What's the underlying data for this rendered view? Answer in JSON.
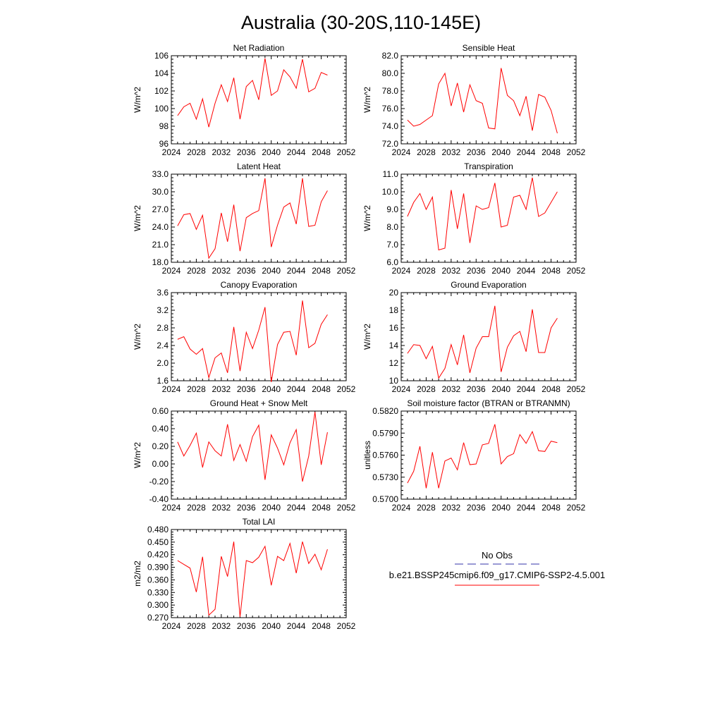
{
  "figure": {
    "title": "Australia (30-20S,110-145E)"
  },
  "legend": {
    "obs_label": "No Obs",
    "obs_color": "#3333aa",
    "model_label": "b.e21.BSSP245cmip6.f09_g17.CMIP6-SSP2-4.5.001",
    "model_color": "#ff0000"
  },
  "chart_data": [
    {
      "type": "line",
      "title": "Net Radiation",
      "ylabel": "W/m^2",
      "xlim": [
        2024,
        2052
      ],
      "xticks": [
        "2024",
        "2028",
        "2032",
        "2036",
        "2040",
        "2044",
        "2048",
        "2052"
      ],
      "ylim": [
        96,
        106
      ],
      "yticks": [
        "96",
        "98",
        "100",
        "102",
        "104",
        "106"
      ],
      "x": [
        2025,
        2026,
        2027,
        2028,
        2029,
        2030,
        2031,
        2032,
        2033,
        2034,
        2035,
        2036,
        2037,
        2038,
        2039,
        2040,
        2041,
        2042,
        2043,
        2044,
        2045,
        2046,
        2047,
        2048,
        2049
      ],
      "series": [
        {
          "values": [
            99.2,
            100.2,
            100.6,
            98.8,
            101.1,
            97.9,
            100.6,
            102.7,
            100.8,
            103.5,
            98.8,
            102.5,
            103.2,
            101.0,
            105.7,
            101.5,
            102.0,
            104.4,
            103.6,
            102.3,
            105.6,
            101.9,
            102.3,
            104.1,
            103.8
          ]
        }
      ]
    },
    {
      "type": "line",
      "title": "Sensible Heat",
      "ylabel": "W/m^2",
      "xlim": [
        2024,
        2052
      ],
      "xticks": [
        "2024",
        "2028",
        "2032",
        "2036",
        "2040",
        "2044",
        "2048",
        "2052"
      ],
      "ylim": [
        72.0,
        82.0
      ],
      "yticks": [
        "72.0",
        "74.0",
        "76.0",
        "78.0",
        "80.0",
        "82.0"
      ],
      "x": [
        2025,
        2026,
        2027,
        2028,
        2029,
        2030,
        2031,
        2032,
        2033,
        2034,
        2035,
        2036,
        2037,
        2038,
        2039,
        2040,
        2041,
        2042,
        2043,
        2044,
        2045,
        2046,
        2047,
        2048,
        2049
      ],
      "series": [
        {
          "values": [
            74.7,
            74.0,
            74.2,
            74.7,
            75.2,
            78.8,
            80.0,
            76.3,
            78.9,
            75.6,
            78.7,
            76.9,
            76.6,
            73.8,
            73.7,
            80.6,
            77.5,
            76.9,
            75.2,
            77.4,
            73.5,
            77.6,
            77.3,
            75.8,
            73.2
          ]
        }
      ]
    },
    {
      "type": "line",
      "title": "Latent Heat",
      "ylabel": "W/m^2",
      "xlim": [
        2024,
        2052
      ],
      "xticks": [
        "2024",
        "2028",
        "2032",
        "2036",
        "2040",
        "2044",
        "2048",
        "2052"
      ],
      "ylim": [
        18.0,
        33.0
      ],
      "yticks": [
        "18.0",
        "21.0",
        "24.0",
        "27.0",
        "30.0",
        "33.0"
      ],
      "x": [
        2025,
        2026,
        2027,
        2028,
        2029,
        2030,
        2031,
        2032,
        2033,
        2034,
        2035,
        2036,
        2037,
        2038,
        2039,
        2040,
        2041,
        2042,
        2043,
        2044,
        2045,
        2046,
        2047,
        2048,
        2049
      ],
      "series": [
        {
          "values": [
            24.2,
            26.1,
            26.3,
            23.6,
            26.0,
            18.7,
            20.3,
            26.4,
            21.5,
            27.8,
            19.9,
            25.6,
            26.3,
            26.8,
            32.3,
            20.6,
            24.3,
            27.4,
            28.1,
            24.5,
            32.3,
            24.1,
            24.3,
            28.3,
            30.2
          ]
        }
      ]
    },
    {
      "type": "line",
      "title": "Transpiration",
      "ylabel": "W/m^2",
      "xlim": [
        2024,
        2052
      ],
      "xticks": [
        "2024",
        "2028",
        "2032",
        "2036",
        "2040",
        "2044",
        "2048",
        "2052"
      ],
      "ylim": [
        6.0,
        11.0
      ],
      "yticks": [
        "6.0",
        "7.0",
        "8.0",
        "9.0",
        "10.0",
        "11.0"
      ],
      "x": [
        2025,
        2026,
        2027,
        2028,
        2029,
        2030,
        2031,
        2032,
        2033,
        2034,
        2035,
        2036,
        2037,
        2038,
        2039,
        2040,
        2041,
        2042,
        2043,
        2044,
        2045,
        2046,
        2047,
        2048,
        2049
      ],
      "series": [
        {
          "values": [
            8.6,
            9.4,
            9.9,
            9.0,
            9.7,
            6.7,
            6.8,
            10.1,
            7.9,
            9.9,
            7.1,
            9.2,
            9.0,
            9.1,
            10.5,
            8.0,
            8.1,
            9.7,
            9.8,
            9.0,
            10.8,
            8.6,
            8.8,
            9.4,
            10.0
          ]
        }
      ]
    },
    {
      "type": "line",
      "title": "Canopy Evaporation",
      "ylabel": "W/m^2",
      "xlim": [
        2024,
        2052
      ],
      "xticks": [
        "2024",
        "2028",
        "2032",
        "2036",
        "2040",
        "2044",
        "2048",
        "2052"
      ],
      "ylim": [
        1.6,
        3.6
      ],
      "yticks": [
        "1.6",
        "2.0",
        "2.4",
        "2.8",
        "3.2",
        "3.6"
      ],
      "x": [
        2025,
        2026,
        2027,
        2028,
        2029,
        2030,
        2031,
        2032,
        2033,
        2034,
        2035,
        2036,
        2037,
        2038,
        2039,
        2040,
        2041,
        2042,
        2043,
        2044,
        2045,
        2046,
        2047,
        2048,
        2049
      ],
      "series": [
        {
          "values": [
            2.54,
            2.6,
            2.32,
            2.2,
            2.33,
            1.67,
            2.12,
            2.23,
            1.78,
            2.82,
            1.82,
            2.7,
            2.33,
            2.75,
            3.27,
            1.57,
            2.42,
            2.7,
            2.72,
            2.18,
            3.42,
            2.35,
            2.45,
            2.88,
            3.1
          ]
        }
      ]
    },
    {
      "type": "line",
      "title": "Ground Evaporation",
      "ylabel": "W/m^2",
      "xlim": [
        2024,
        2052
      ],
      "xticks": [
        "2024",
        "2028",
        "2032",
        "2036",
        "2040",
        "2044",
        "2048",
        "2052"
      ],
      "ylim": [
        10,
        20
      ],
      "yticks": [
        "10",
        "12",
        "14",
        "16",
        "18",
        "20"
      ],
      "x": [
        2025,
        2026,
        2027,
        2028,
        2029,
        2030,
        2031,
        2032,
        2033,
        2034,
        2035,
        2036,
        2037,
        2038,
        2039,
        2040,
        2041,
        2042,
        2043,
        2044,
        2045,
        2046,
        2047,
        2048,
        2049
      ],
      "series": [
        {
          "values": [
            13.1,
            14.1,
            14.0,
            12.5,
            13.9,
            10.3,
            11.4,
            14.1,
            11.8,
            15.2,
            10.9,
            13.7,
            15.0,
            15.0,
            18.5,
            11.0,
            13.8,
            15.1,
            15.6,
            13.3,
            18.1,
            13.2,
            13.2,
            16.0,
            17.1
          ]
        }
      ]
    },
    {
      "type": "line",
      "title": "Ground Heat + Snow Melt",
      "ylabel": "W/m^2",
      "xlim": [
        2024,
        2052
      ],
      "xticks": [
        "2024",
        "2028",
        "2032",
        "2036",
        "2040",
        "2044",
        "2048",
        "2052"
      ],
      "ylim": [
        -0.4,
        0.6
      ],
      "yticks": [
        "-0.40",
        "-0.20",
        "0.00",
        "0.20",
        "0.40",
        "0.60"
      ],
      "x": [
        2025,
        2026,
        2027,
        2028,
        2029,
        2030,
        2031,
        2032,
        2033,
        2034,
        2035,
        2036,
        2037,
        2038,
        2039,
        2040,
        2041,
        2042,
        2043,
        2044,
        2045,
        2046,
        2047,
        2048,
        2049
      ],
      "series": [
        {
          "values": [
            0.25,
            0.09,
            0.21,
            0.35,
            -0.04,
            0.25,
            0.15,
            0.09,
            0.45,
            0.04,
            0.22,
            0.03,
            0.31,
            0.44,
            -0.18,
            0.33,
            0.18,
            -0.01,
            0.24,
            0.39,
            -0.2,
            0.09,
            0.59,
            -0.01,
            0.36
          ]
        }
      ]
    },
    {
      "type": "line",
      "title": "Soil moisture factor (BTRAN or BTRANMN)",
      "ylabel": "unitless",
      "xlim": [
        2024,
        2052
      ],
      "xticks": [
        "2024",
        "2028",
        "2032",
        "2036",
        "2040",
        "2044",
        "2048",
        "2052"
      ],
      "ylim": [
        0.57,
        0.582
      ],
      "yticks": [
        "0.5700",
        "0.5730",
        "0.5760",
        "0.5790",
        "0.5820"
      ],
      "x": [
        2025,
        2026,
        2027,
        2028,
        2029,
        2030,
        2031,
        2032,
        2033,
        2034,
        2035,
        2036,
        2037,
        2038,
        2039,
        2040,
        2041,
        2042,
        2043,
        2044,
        2045,
        2046,
        2047,
        2048,
        2049
      ],
      "series": [
        {
          "values": [
            0.5722,
            0.5738,
            0.5772,
            0.5715,
            0.5764,
            0.5715,
            0.5752,
            0.5756,
            0.574,
            0.5777,
            0.5747,
            0.5748,
            0.5774,
            0.5776,
            0.5802,
            0.5748,
            0.5758,
            0.5762,
            0.5788,
            0.5776,
            0.5792,
            0.5766,
            0.5765,
            0.5779,
            0.5777
          ]
        }
      ]
    },
    {
      "type": "line",
      "title": "Total LAI",
      "ylabel": "m2/m2",
      "xlim": [
        2024,
        2052
      ],
      "xticks": [
        "2024",
        "2028",
        "2032",
        "2036",
        "2040",
        "2044",
        "2048",
        "2052"
      ],
      "ylim": [
        0.27,
        0.48
      ],
      "yticks": [
        "0.270",
        "0.300",
        "0.330",
        "0.360",
        "0.390",
        "0.420",
        "0.450",
        "0.480"
      ],
      "x": [
        2025,
        2026,
        2027,
        2028,
        2029,
        2030,
        2031,
        2032,
        2033,
        2034,
        2035,
        2036,
        2037,
        2038,
        2039,
        2040,
        2041,
        2042,
        2043,
        2044,
        2045,
        2046,
        2047,
        2048,
        2049
      ],
      "series": [
        {
          "values": [
            0.406,
            0.397,
            0.388,
            0.331,
            0.415,
            0.276,
            0.29,
            0.416,
            0.368,
            0.451,
            0.272,
            0.406,
            0.401,
            0.414,
            0.44,
            0.347,
            0.416,
            0.406,
            0.447,
            0.376,
            0.451,
            0.399,
            0.421,
            0.384,
            0.433
          ]
        }
      ]
    }
  ]
}
